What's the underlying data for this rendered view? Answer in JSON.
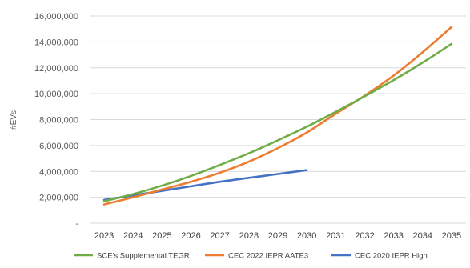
{
  "chart_data": {
    "type": "line",
    "title": "",
    "ylabel": "#EVs",
    "xlabel": "",
    "x": [
      "2023",
      "2024",
      "2025",
      "2026",
      "2027",
      "2028",
      "2029",
      "2030",
      "2031",
      "2032",
      "2033",
      "2034",
      "2035"
    ],
    "ylim": [
      0,
      16000000
    ],
    "yticks": [
      0,
      2000000,
      4000000,
      6000000,
      8000000,
      10000000,
      12000000,
      14000000,
      16000000
    ],
    "ytick_labels": [
      "-",
      "2,000,000",
      "4,000,000",
      "6,000,000",
      "8,000,000",
      "10,000,000",
      "12,000,000",
      "14,000,000",
      "16,000,000"
    ],
    "grid": "horizontal",
    "legend_position": "bottom",
    "series": [
      {
        "name": "SCE's Supplemental TEGR",
        "color": "#70ad47",
        "values": [
          1700000,
          2250000,
          2900000,
          3650000,
          4500000,
          5400000,
          6400000,
          7450000,
          8600000,
          9800000,
          11050000,
          12400000,
          13850000
        ]
      },
      {
        "name": "CEC 2022 IEPR AATE3",
        "color": "#ed7d31",
        "values": [
          1450000,
          2000000,
          2600000,
          3200000,
          3900000,
          4750000,
          5800000,
          7000000,
          8450000,
          9850000,
          11400000,
          13200000,
          15150000
        ]
      },
      {
        "name": "CEC 2020 IEPR High",
        "color": "#4472c4",
        "values": [
          1800000,
          2150000,
          2500000,
          2850000,
          3200000,
          3500000,
          3800000,
          4100000,
          null,
          null,
          null,
          null,
          null
        ]
      }
    ]
  }
}
